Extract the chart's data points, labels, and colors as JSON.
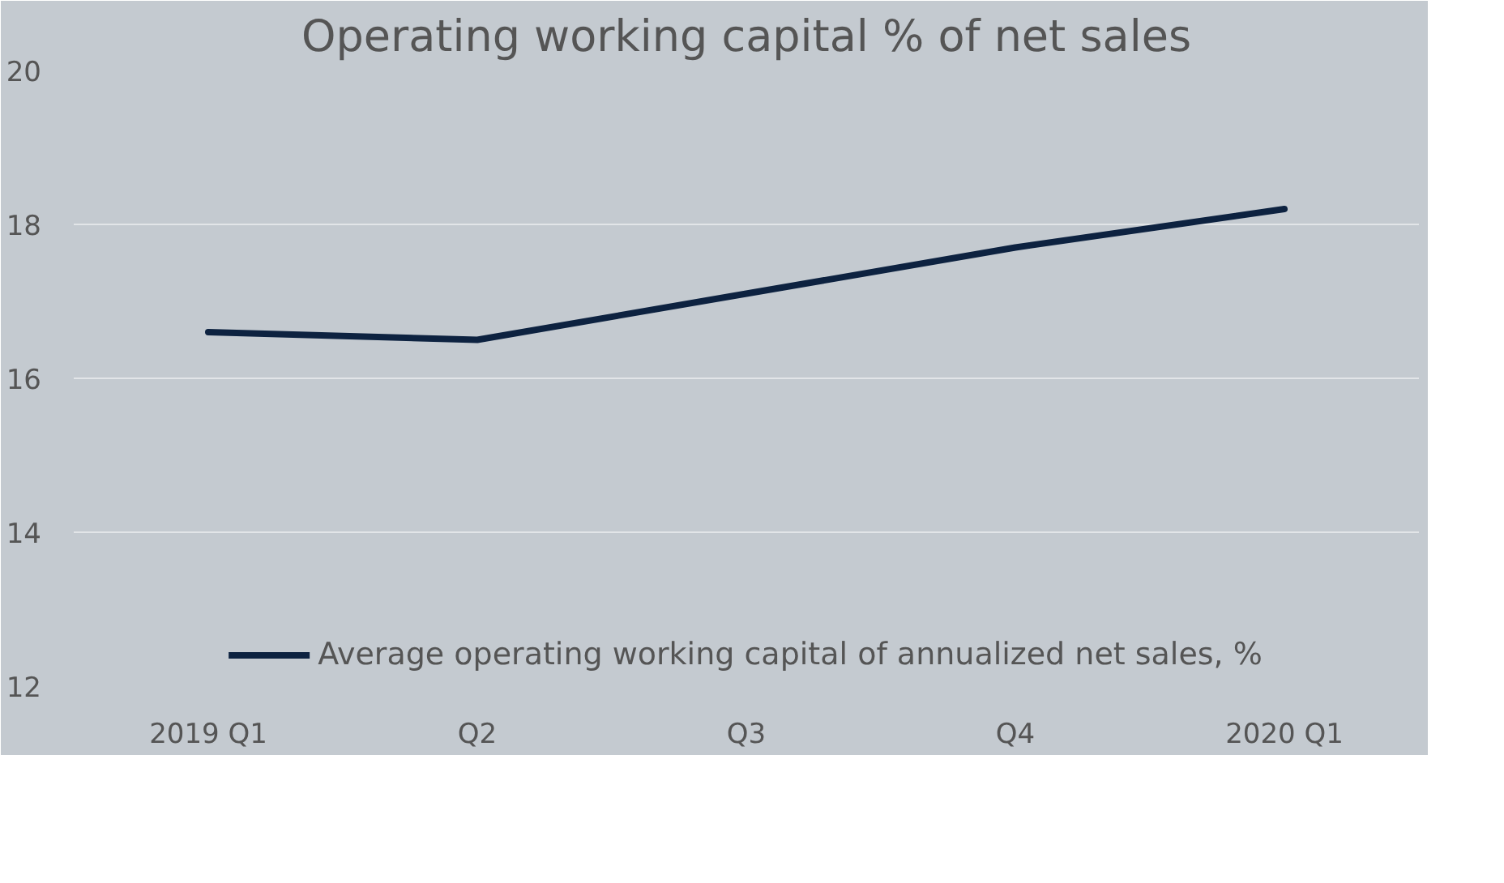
{
  "chart_data": {
    "type": "line",
    "title": "Operating working capital % of net sales",
    "categories": [
      "2019 Q1",
      "Q2",
      "Q3",
      "Q4",
      "2020 Q1"
    ],
    "series": [
      {
        "name": "Average operating working capital of annualized net sales, %",
        "color": "#0d2240",
        "values": [
          16.6,
          16.5,
          17.1,
          17.7,
          18.2
        ]
      }
    ],
    "ylim": [
      12,
      20
    ],
    "yticks": [
      12,
      14,
      16,
      18,
      20
    ],
    "grid": "y",
    "legend": "bottom",
    "marker": "none",
    "line_style": "solid"
  }
}
